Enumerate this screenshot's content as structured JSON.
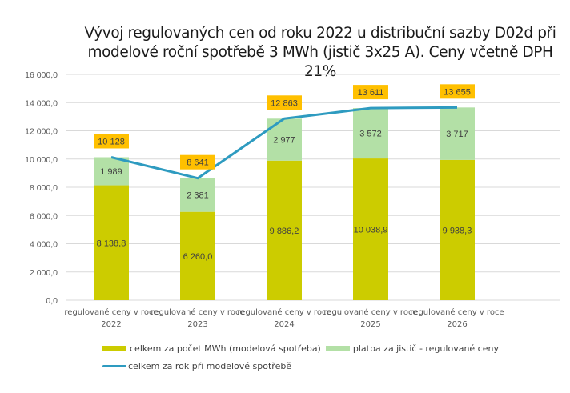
{
  "chart_data": {
    "type": "bar",
    "stacked": true,
    "title": "Vývoj regulovaných cen od roku 2022 u distribuční sazby D02d při modelové roční spotřebě 3 MWh (jistič 3x25 A). Ceny včetně DPH 21%",
    "title_lines": [
      "Vývoj regulovaných cen od roku 2022 u distribuční sazby D02d při",
      "modelové roční spotřebě 3 MWh (jistič 3x25 A). Ceny včetně DPH 21%"
    ],
    "categories": [
      [
        "regulované ceny v roce",
        "2022"
      ],
      [
        "regulované ceny v roce",
        "2023"
      ],
      [
        "regulované ceny v roce",
        "2024"
      ],
      [
        "regulované ceny v roce",
        "2025"
      ],
      [
        "regulované ceny v roce",
        "2026"
      ]
    ],
    "ylim": [
      0,
      16000
    ],
    "yticks": [
      0,
      2000,
      4000,
      6000,
      8000,
      10000,
      12000,
      14000,
      16000
    ],
    "ytick_labels": [
      "0,0",
      "2 000,0",
      "4 000,0",
      "6 000,0",
      "8 000,0",
      "10 000,0",
      "12 000,0",
      "14 000,0",
      "16 000,0"
    ],
    "grid": true,
    "legend_position": "bottom",
    "series": [
      {
        "name": "celkem za počet MWh (modelová spotřeba)",
        "type": "bar",
        "color": "#cccc00",
        "values": [
          8138.8,
          6260.0,
          9886.2,
          10038.9,
          9938.3
        ],
        "labels": [
          "8 138,8",
          "6 260,0",
          "9 886,2",
          "10 038,9",
          "9 938,3"
        ]
      },
      {
        "name": "platba za jistič - regulované ceny",
        "type": "bar",
        "color": "#b3e0a6",
        "values": [
          1989,
          2381,
          2977,
          3572,
          3717
        ],
        "labels": [
          "1 989",
          "2 381",
          "2 977",
          "3 572",
          "3 717"
        ]
      },
      {
        "name": "celkem za rok při modelové spotřebě",
        "type": "line",
        "color": "#2e9bc0",
        "values": [
          10128,
          8641,
          12863,
          13611,
          13655
        ],
        "labels": [
          "10 128",
          "8 641",
          "12 863",
          "13 611",
          "13 655"
        ],
        "label_bg": "#ffc000"
      }
    ]
  }
}
